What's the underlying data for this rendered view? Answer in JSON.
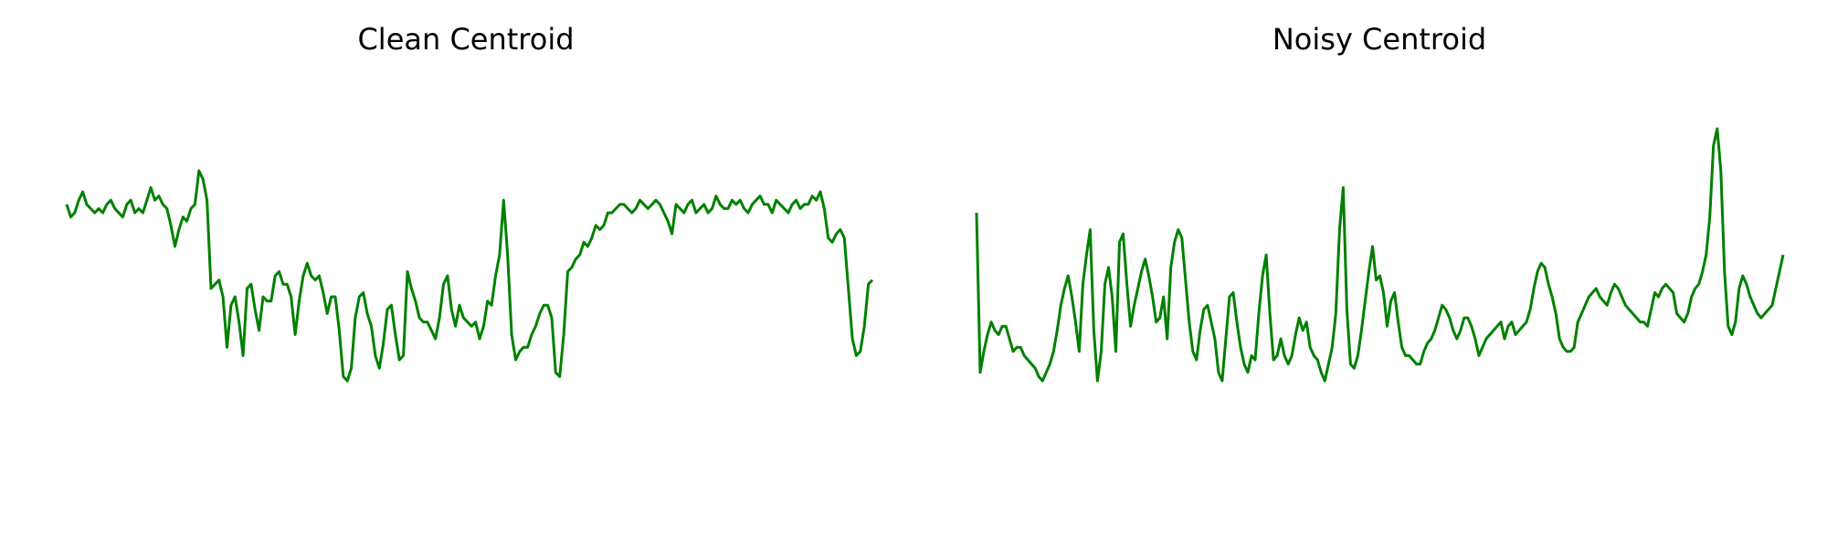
{
  "chart_data": [
    {
      "type": "line",
      "title": "Clean Centroid",
      "axes_visible": false,
      "series": [
        {
          "color": "#008000",
          "values": [
            0.72,
            0.69,
            0.7,
            0.73,
            0.75,
            0.72,
            0.71,
            0.7,
            0.71,
            0.7,
            0.72,
            0.73,
            0.71,
            0.7,
            0.69,
            0.72,
            0.73,
            0.7,
            0.71,
            0.7,
            0.73,
            0.76,
            0.73,
            0.74,
            0.72,
            0.71,
            0.67,
            0.62,
            0.66,
            0.69,
            0.68,
            0.71,
            0.72,
            0.8,
            0.78,
            0.73,
            0.52,
            0.53,
            0.54,
            0.5,
            0.38,
            0.48,
            0.5,
            0.44,
            0.36,
            0.52,
            0.53,
            0.47,
            0.42,
            0.5,
            0.49,
            0.49,
            0.55,
            0.56,
            0.53,
            0.53,
            0.5,
            0.41,
            0.49,
            0.55,
            0.58,
            0.55,
            0.54,
            0.55,
            0.51,
            0.46,
            0.5,
            0.5,
            0.42,
            0.31,
            0.3,
            0.33,
            0.45,
            0.5,
            0.51,
            0.46,
            0.43,
            0.36,
            0.33,
            0.39,
            0.47,
            0.48,
            0.41,
            0.35,
            0.36,
            0.56,
            0.52,
            0.49,
            0.45,
            0.44,
            0.44,
            0.42,
            0.4,
            0.45,
            0.53,
            0.55,
            0.47,
            0.43,
            0.48,
            0.45,
            0.44,
            0.43,
            0.44,
            0.4,
            0.43,
            0.49,
            0.48,
            0.55,
            0.6,
            0.73,
            0.6,
            0.41,
            0.35,
            0.37,
            0.38,
            0.38,
            0.41,
            0.43,
            0.46,
            0.48,
            0.48,
            0.45,
            0.32,
            0.31,
            0.41,
            0.56,
            0.57,
            0.59,
            0.6,
            0.63,
            0.62,
            0.64,
            0.67,
            0.66,
            0.67,
            0.7,
            0.7,
            0.71,
            0.72,
            0.72,
            0.71,
            0.7,
            0.71,
            0.73,
            0.72,
            0.71,
            0.72,
            0.73,
            0.72,
            0.7,
            0.68,
            0.65,
            0.72,
            0.71,
            0.7,
            0.72,
            0.73,
            0.7,
            0.71,
            0.72,
            0.7,
            0.71,
            0.74,
            0.72,
            0.71,
            0.71,
            0.73,
            0.72,
            0.73,
            0.71,
            0.7,
            0.72,
            0.73,
            0.74,
            0.72,
            0.72,
            0.7,
            0.73,
            0.72,
            0.71,
            0.7,
            0.72,
            0.73,
            0.71,
            0.72,
            0.72,
            0.74,
            0.73,
            0.75,
            0.71,
            0.64,
            0.63,
            0.65,
            0.66,
            0.64,
            0.52,
            0.4,
            0.36,
            0.37,
            0.43,
            0.53,
            0.54
          ],
          "note": "x-axis: sample index; values are normalized centroid amplitude (0=min, 1=max of plot area)"
        }
      ]
    },
    {
      "type": "line",
      "title": "Noisy Centroid",
      "axes_visible": false,
      "series": [
        {
          "color": "#008000",
          "values": [
            0.7,
            0.32,
            0.37,
            0.41,
            0.44,
            0.42,
            0.41,
            0.43,
            0.43,
            0.4,
            0.37,
            0.38,
            0.38,
            0.36,
            0.35,
            0.34,
            0.33,
            0.31,
            0.3,
            0.32,
            0.34,
            0.37,
            0.42,
            0.48,
            0.52,
            0.55,
            0.5,
            0.44,
            0.37,
            0.53,
            0.6,
            0.66,
            0.42,
            0.3,
            0.37,
            0.53,
            0.57,
            0.5,
            0.37,
            0.63,
            0.65,
            0.53,
            0.43,
            0.48,
            0.52,
            0.56,
            0.59,
            0.55,
            0.5,
            0.44,
            0.45,
            0.5,
            0.4,
            0.57,
            0.63,
            0.66,
            0.64,
            0.54,
            0.44,
            0.37,
            0.35,
            0.42,
            0.47,
            0.48,
            0.44,
            0.4,
            0.32,
            0.3,
            0.4,
            0.5,
            0.51,
            0.44,
            0.38,
            0.34,
            0.32,
            0.36,
            0.35,
            0.46,
            0.55,
            0.6,
            0.46,
            0.35,
            0.36,
            0.4,
            0.36,
            0.34,
            0.36,
            0.41,
            0.45,
            0.42,
            0.44,
            0.38,
            0.36,
            0.35,
            0.32,
            0.3,
            0.34,
            0.38,
            0.46,
            0.66,
            0.76,
            0.47,
            0.34,
            0.33,
            0.36,
            0.42,
            0.49,
            0.56,
            0.62,
            0.54,
            0.55,
            0.51,
            0.43,
            0.49,
            0.51,
            0.44,
            0.38,
            0.36,
            0.36,
            0.35,
            0.34,
            0.34,
            0.37,
            0.39,
            0.4,
            0.42,
            0.45,
            0.48,
            0.47,
            0.45,
            0.42,
            0.4,
            0.42,
            0.45,
            0.45,
            0.43,
            0.4,
            0.36,
            0.38,
            0.4,
            0.41,
            0.42,
            0.43,
            0.44,
            0.4,
            0.43,
            0.44,
            0.41,
            0.42,
            0.43,
            0.44,
            0.47,
            0.52,
            0.56,
            0.58,
            0.57,
            0.53,
            0.5,
            0.46,
            0.4,
            0.38,
            0.37,
            0.37,
            0.38,
            0.44,
            0.46,
            0.48,
            0.5,
            0.51,
            0.52,
            0.5,
            0.49,
            0.48,
            0.51,
            0.53,
            0.52,
            0.5,
            0.48,
            0.47,
            0.46,
            0.45,
            0.44,
            0.44,
            0.43,
            0.47,
            0.51,
            0.5,
            0.52,
            0.53,
            0.52,
            0.51,
            0.46,
            0.45,
            0.44,
            0.46,
            0.5,
            0.52,
            0.53,
            0.56,
            0.6,
            0.69,
            0.86,
            0.9,
            0.8,
            0.56,
            0.43,
            0.41,
            0.44,
            0.52,
            0.55,
            0.53,
            0.5,
            0.48,
            0.46,
            0.45,
            0.46,
            0.47,
            0.48,
            0.52,
            0.56,
            0.6
          ]
        }
      ]
    }
  ]
}
